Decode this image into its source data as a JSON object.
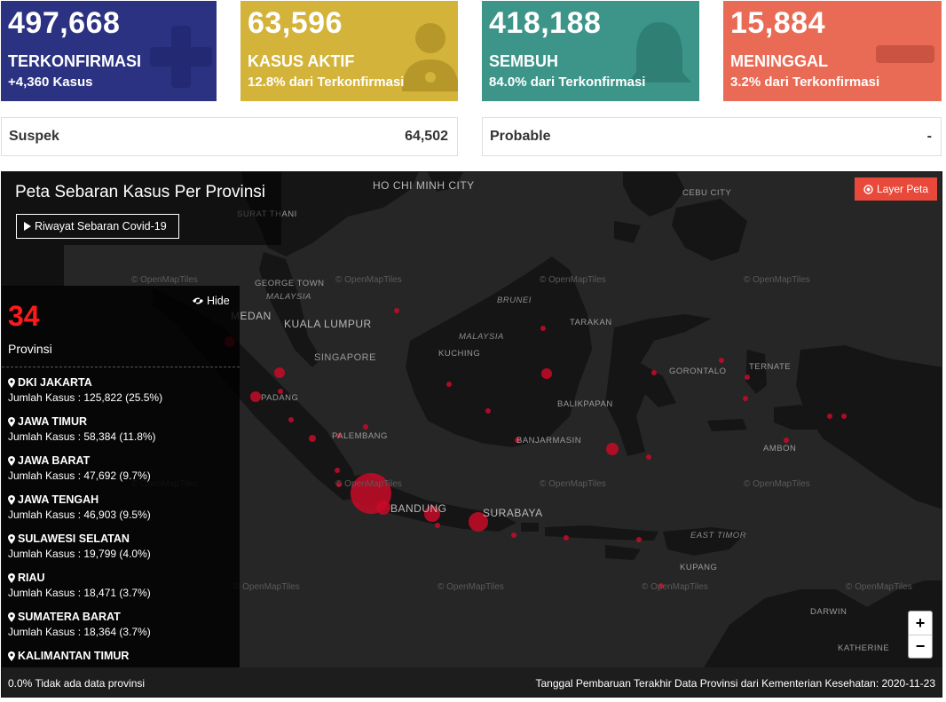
{
  "cards": [
    {
      "number": "497,668",
      "label": "TERKONFIRMASI",
      "sub": "+4,360 Kasus",
      "color": "#2c3282",
      "icon": "plus-icon"
    },
    {
      "number": "63,596",
      "label": "KASUS AKTIF",
      "sub": "12.8% dari Terkonfirmasi",
      "color": "#d4b33a",
      "icon": "doctor-icon"
    },
    {
      "number": "418,188",
      "label": "SEMBUH",
      "sub": "84.0% dari Terkonfirmasi",
      "color": "#3d958a",
      "icon": "bell-icon"
    },
    {
      "number": "15,884",
      "label": "MENINGGAL",
      "sub": "3.2% dari Terkonfirmasi",
      "color": "#ea6b55",
      "icon": "minus-icon"
    }
  ],
  "boxes": [
    {
      "label": "Suspek",
      "value": "64,502"
    },
    {
      "label": "Probable",
      "value": "-"
    }
  ],
  "map": {
    "title": "Peta Sebaran Kasus Per Provinsi",
    "history_button": "Riwayat Sebaran Covid-19",
    "layer_button": "Layer Peta",
    "hide_button": "Hide",
    "province_count": "34",
    "province_label": "Provinsi",
    "provinces": [
      {
        "name": "DKI JAKARTA",
        "cases": "Jumlah Kasus : 125,822 (25.5%)"
      },
      {
        "name": "JAWA TIMUR",
        "cases": "Jumlah Kasus : 58,384 (11.8%)"
      },
      {
        "name": "JAWA BARAT",
        "cases": "Jumlah Kasus : 47,692 (9.7%)"
      },
      {
        "name": "JAWA TENGAH",
        "cases": "Jumlah Kasus : 46,903 (9.5%)"
      },
      {
        "name": "SULAWESI SELATAN",
        "cases": "Jumlah Kasus : 19,799 (4.0%)"
      },
      {
        "name": "RIAU",
        "cases": "Jumlah Kasus : 18,471 (3.7%)"
      },
      {
        "name": "SUMATERA BARAT",
        "cases": "Jumlah Kasus : 18,364 (3.7%)"
      },
      {
        "name": "KALIMANTAN TIMUR",
        "cases": ""
      }
    ],
    "zoom_in": "+",
    "zoom_out": "−",
    "attribution": "© OpenMapTiles",
    "labels": {
      "ho_chi_minh": "HO CHI MINH CITY",
      "cebu": "CEBU CITY",
      "surat_thani": "SURAT THANI",
      "george_town": "GEORGE TOWN",
      "malaysia_w": "MALAYSIA",
      "medan": "MEDAN",
      "kuala_lumpur": "KUALA LUMPUR",
      "singapore": "SINGAPORE",
      "brunei": "BRUNEI",
      "malaysia_e": "MALAYSIA",
      "tarakan": "TARAKAN",
      "kuching": "KUCHING",
      "gorontalo": "GORONTALO",
      "ternate": "TERNATE",
      "padang": "PADANG",
      "balikpapan": "BALIKPAPAN",
      "palembang": "PALEMBANG",
      "banjarmasin": "BANJARMASIN",
      "ambon": "AMBON",
      "bandung": "BANDUNG",
      "surabaya": "SURABAYA",
      "east_timor": "EAST TIMOR",
      "kupang": "KUPANG",
      "darwin": "DARWIN",
      "katherine": "KATHERINE"
    },
    "footer_left": "0.0% Tidak ada data provinsi",
    "footer_right": "Tanggal Pembaruan Terakhir Data Provinsi dari Kementerian Kesehatan: 2020-11-23"
  }
}
